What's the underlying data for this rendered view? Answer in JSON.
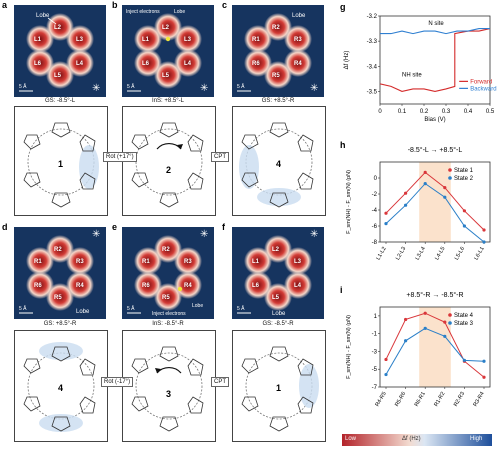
{
  "panels": {
    "a": {
      "letter": "a",
      "caption": "GS: -8.5°-L",
      "sites": [
        "L1",
        "L2",
        "L3",
        "L4",
        "L5",
        "L6"
      ],
      "note": "Lobe",
      "scale": "5 Å"
    },
    "b": {
      "letter": "b",
      "caption": "InS: +8.5°-L",
      "sites": [
        "L1",
        "L2",
        "L3",
        "L4",
        "L5",
        "L6"
      ],
      "note": "Lobe",
      "note2": "Inject electrons",
      "scale": "5 Å"
    },
    "c": {
      "letter": "c",
      "caption": "GS: +8.5°-R",
      "sites": [
        "R1",
        "R2",
        "R3",
        "R4",
        "R5",
        "R6"
      ],
      "note": "Lobe",
      "scale": "5 Å"
    },
    "d": {
      "letter": "d",
      "caption": "GS: +8.5°-R",
      "sites": [
        "R1",
        "R2",
        "R3",
        "R4",
        "R5",
        "R6"
      ],
      "note": "Lobe",
      "scale": "5 Å"
    },
    "e": {
      "letter": "e",
      "caption": "InS: -8.5°-R",
      "sites": [
        "R1",
        "R2",
        "R3",
        "R4",
        "R5",
        "R6"
      ],
      "note": "Lobe",
      "note2": "Inject electrons",
      "scale": "5 Å"
    },
    "f": {
      "letter": "f",
      "caption": "GS: -8.5°-R",
      "sites": [
        "L1",
        "L2",
        "L3",
        "L4",
        "L5",
        "L6"
      ],
      "note": "Lobe",
      "scale": "5 Å"
    }
  },
  "structures": {
    "s1_top": "1",
    "s2": "2",
    "s4_top": "4",
    "s4_bot": "4",
    "s3": "3",
    "s1_bot": "1"
  },
  "arrows": {
    "rot_top": "Rot (+17°)",
    "cpt_top": "CPT",
    "rot_bot": "Rot (-17°)",
    "cpt_bot": "CPT"
  },
  "colorbar": {
    "low": "Low",
    "mid": "Δf (Hz)",
    "high": "High",
    "low_color": "#b3232a",
    "high_color": "#1e4f9b"
  },
  "chart_data": [
    {
      "type": "line",
      "letter": "g",
      "ylabel": "Δf (Hz)",
      "xlabel": "Bias (V)",
      "ylim": [
        -3.55,
        -3.2
      ],
      "xlim": [
        0,
        0.5
      ],
      "yticks": [
        "-3.2",
        "-3.3",
        "-3.4",
        "-3.5"
      ],
      "xticks": [
        "0",
        "0.1",
        "0.2",
        "0.3",
        "0.4",
        "0.5"
      ],
      "annotations": [
        "N site",
        "NH site"
      ],
      "series": [
        {
          "name": "Forward",
          "color": "#d42a2a",
          "x": [
            0,
            0.05,
            0.1,
            0.15,
            0.2,
            0.25,
            0.3,
            0.34,
            0.34,
            0.4,
            0.45,
            0.5
          ],
          "y": [
            -3.47,
            -3.48,
            -3.5,
            -3.49,
            -3.49,
            -3.5,
            -3.49,
            -3.48,
            -3.27,
            -3.26,
            -3.26,
            -3.25
          ]
        },
        {
          "name": "Backward",
          "color": "#2f7fd1",
          "x": [
            0,
            0.05,
            0.1,
            0.15,
            0.2,
            0.25,
            0.3,
            0.35,
            0.4,
            0.45,
            0.5
          ],
          "y": [
            -3.27,
            -3.27,
            -3.26,
            -3.27,
            -3.26,
            -3.26,
            -3.27,
            -3.26,
            -3.26,
            -3.25,
            -3.25
          ]
        }
      ]
    },
    {
      "type": "line",
      "letter": "h",
      "title": "-8.5°-L  →  +8.5°-L",
      "ylabel": "F_sm(NH) - F_sm(N) (pN)",
      "ylim": [
        -8,
        2
      ],
      "yticks": [
        "0",
        "-2",
        "-4",
        "-6",
        "-8"
      ],
      "categories": [
        "L1-L2",
        "L2-L3",
        "L3-L4",
        "L4-L5",
        "L5-L6",
        "L6-L1"
      ],
      "highlight": [
        "L3-L4",
        "L4-L5"
      ],
      "series": [
        {
          "name": "State 1",
          "color": "#d9363a",
          "values": [
            -4.4,
            -1.9,
            0.7,
            -1.2,
            -4.1,
            -6.5
          ]
        },
        {
          "name": "State 2",
          "color": "#2a7fc8",
          "values": [
            -5.7,
            -3.4,
            -0.7,
            -2.4,
            -6.0,
            -8.0
          ]
        }
      ]
    },
    {
      "type": "line",
      "letter": "i",
      "title": "+8.5°-R  →  -8.5°-R",
      "ylabel": "F_sm(NH) - F_sm(N) (pN)",
      "ylim": [
        -7,
        2
      ],
      "yticks": [
        "1",
        "-1",
        "-3",
        "-5",
        "-7"
      ],
      "categories": [
        "R4-R5",
        "R5-R6",
        "R6-R1",
        "R1-R2",
        "R2-R3",
        "R3-R4"
      ],
      "highlight": [
        "R6-R1",
        "R1-R2"
      ],
      "series": [
        {
          "name": "State 4",
          "color": "#d9363a",
          "values": [
            -3.9,
            0.6,
            1.3,
            0.3,
            -4.1,
            -5.9
          ]
        },
        {
          "name": "State 3",
          "color": "#2a7fc8",
          "values": [
            -5.6,
            -1.8,
            -0.4,
            -1.3,
            -4.0,
            -4.1
          ]
        }
      ]
    }
  ]
}
